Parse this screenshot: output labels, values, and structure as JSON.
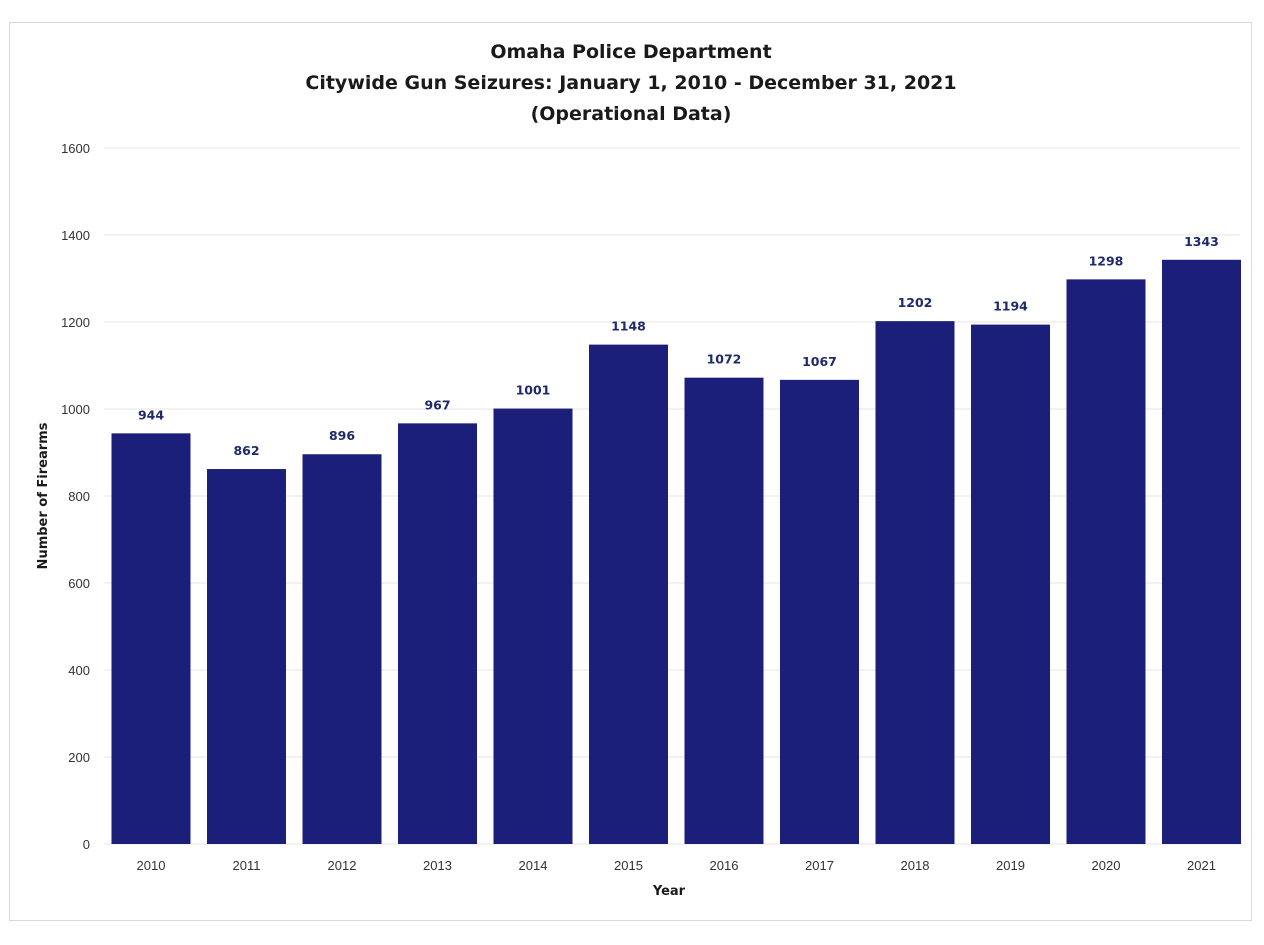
{
  "chart_data": {
    "type": "bar",
    "title_lines": [
      "Omaha Police Department",
      "Citywide Gun Seizures: January 1, 2010 -  December  31, 2021",
      "(Operational Data)"
    ],
    "xlabel": "Year",
    "ylabel": "Number of Firearms",
    "categories": [
      "2010",
      "2011",
      "2012",
      "2013",
      "2014",
      "2015",
      "2016",
      "2017",
      "2018",
      "2019",
      "2020",
      "2021"
    ],
    "values": [
      944,
      862,
      896,
      967,
      1001,
      1148,
      1072,
      1067,
      1202,
      1194,
      1298,
      1343
    ],
    "ylim": [
      0,
      1600
    ],
    "yticks": [
      0,
      200,
      400,
      600,
      800,
      1000,
      1200,
      1400,
      1600
    ],
    "grid": true,
    "bar_color": "#1c1f7a",
    "label_color": "#1f2a6b"
  }
}
